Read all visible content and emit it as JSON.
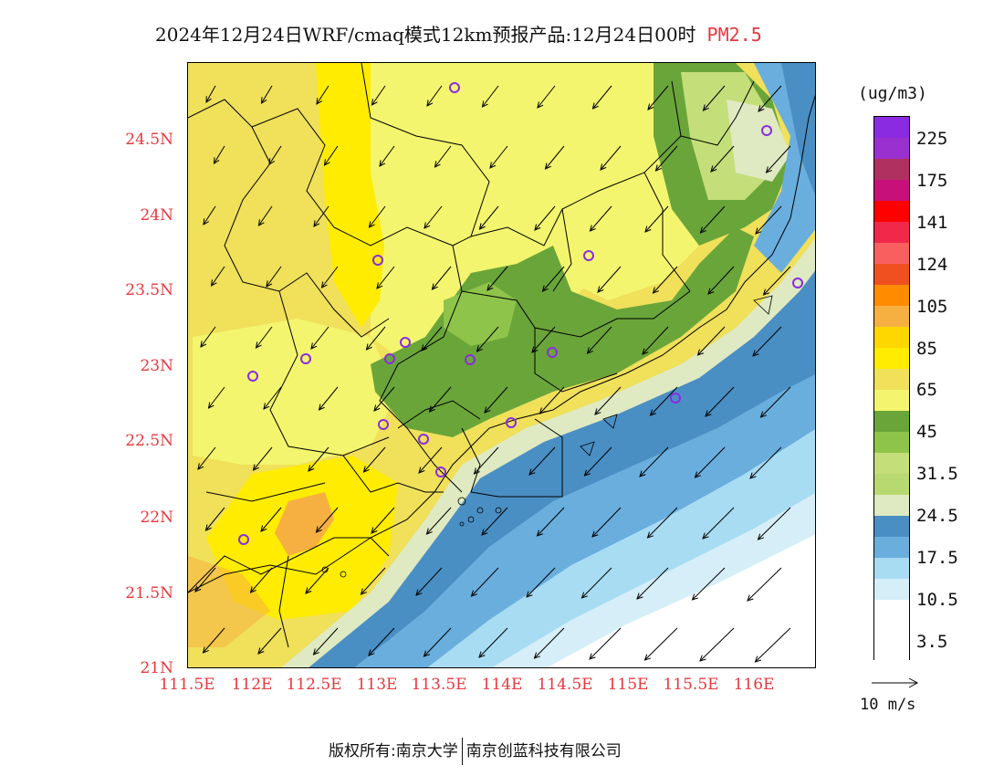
{
  "title": {
    "main": "2024年12月24日WRF/cmaq模式12km预报产品:12月24日00时",
    "species": "PM2.5"
  },
  "map": {
    "lat_labels": [
      "24.5N",
      "24N",
      "23.5N",
      "23N",
      "22.5N",
      "22N",
      "21.5N",
      "21N"
    ],
    "lon_labels": [
      "111.5E",
      "112E",
      "112.5E",
      "113E",
      "113.5E",
      "114E",
      "114.5E",
      "115E",
      "115.5E",
      "116E"
    ],
    "colors": {
      "c_3_5": "#ffffff",
      "c_10_5": "#d6eef8",
      "c_17_5_lb": "#a8dcf3",
      "c_mid_blue": "#6aaede",
      "c_dark_blue": "#4a8fc4",
      "c_pale_green": "#dfe9c2",
      "c_light_green": "#c4de7a",
      "c_green": "#8fc44a",
      "c_dark_green": "#6aa53a",
      "c_light_yellow": "#f3f56e",
      "c_khaki": "#f0e05a",
      "c_yellow": "#ffec00",
      "c_orange": "#f6b042"
    }
  },
  "legend": {
    "unit": "(ug/m3)",
    "labels": [
      "225",
      "175",
      "141",
      "124",
      "105",
      "85",
      "65",
      "45",
      "31.5",
      "24.5",
      "17.5",
      "10.5",
      "3.5"
    ],
    "swatch_colors": [
      "#8a2be2",
      "#9b30d0",
      "#b03060",
      "#c8107a",
      "#ff0000",
      "#f0284a",
      "#f86060",
      "#f05020",
      "#ff8c00",
      "#f6b042",
      "#ffd700",
      "#ffec00",
      "#f0e05a",
      "#f3f56e",
      "#6aa53a",
      "#8fc44a",
      "#c4de7a",
      "#b8d870",
      "#dfe9c2",
      "#4a8fc4",
      "#6aaede",
      "#a8dcf3",
      "#d6eef8",
      "#ffffff",
      "#ffffff",
      "#ffffff"
    ]
  },
  "wind_reference": {
    "label": "10 m/s"
  },
  "footer": {
    "left": "版权所有:南京大学",
    "right": "南京创蓝科技有限公司"
  }
}
